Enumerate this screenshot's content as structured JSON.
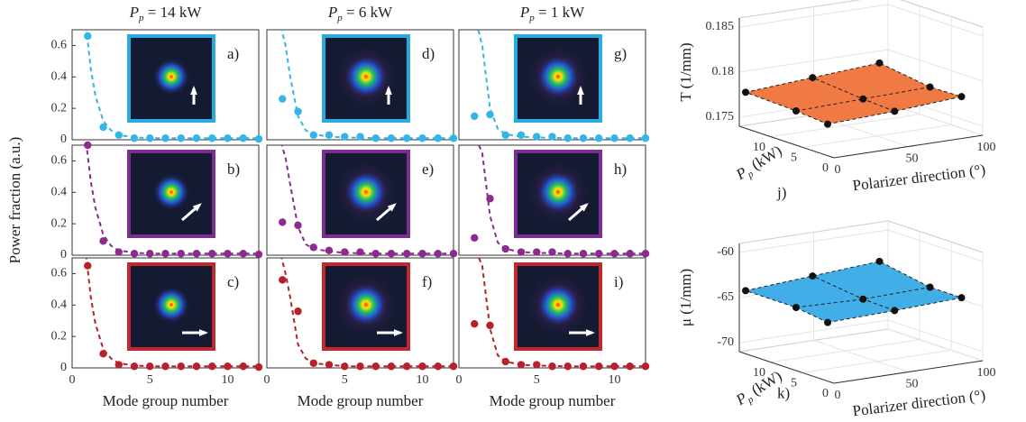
{
  "chart_data": [
    {
      "type": "scatter",
      "title": [
        "P",
        "p",
        " = 14 kW"
      ],
      "panel": "a)",
      "xlim": [
        0,
        12
      ],
      "ylim": [
        0,
        0.7
      ],
      "yticks": [
        0,
        0.2,
        0.4,
        0.6
      ],
      "series": [
        {
          "color": "#33b5e5",
          "x": [
            1,
            2,
            3,
            4,
            5,
            6,
            7,
            8,
            9,
            10,
            11,
            12
          ],
          "values": [
            0.66,
            0.08,
            0.03,
            0.01,
            0.01,
            0.01,
            0.01,
            0.01,
            0.01,
            0.01,
            0.01,
            0.005
          ]
        },
        {
          "color": "#33b5e5",
          "style": "dashed",
          "x": [
            0.9,
            1.2,
            1.5,
            2,
            2.5,
            3,
            4,
            5,
            7,
            9,
            12
          ],
          "values": [
            0.72,
            0.45,
            0.28,
            0.12,
            0.06,
            0.03,
            0.015,
            0.01,
            0.01,
            0.01,
            0.01
          ]
        }
      ]
    },
    {
      "type": "scatter",
      "title": [
        "P",
        "p",
        " = 6 kW"
      ],
      "panel": "d)",
      "xlim": [
        0,
        12
      ],
      "ylim": [
        0,
        0.7
      ],
      "series": [
        {
          "color": "#33b5e5",
          "x": [
            1,
            2,
            3,
            4,
            5,
            6,
            7,
            8,
            9,
            10,
            11,
            12
          ],
          "values": [
            0.26,
            0.18,
            0.03,
            0.03,
            0.02,
            0.02,
            0.01,
            0.01,
            0.01,
            0.01,
            0.01,
            0.01
          ]
        },
        {
          "color": "#33b5e5",
          "style": "dashed",
          "x": [
            0.9,
            1.2,
            1.5,
            2,
            2.5,
            3,
            4,
            5,
            7,
            9,
            12
          ],
          "values": [
            0.72,
            0.6,
            0.4,
            0.15,
            0.06,
            0.035,
            0.02,
            0.015,
            0.01,
            0.01,
            0.01
          ]
        }
      ]
    },
    {
      "type": "scatter",
      "title": [
        "P",
        "p",
        " = 1 kW"
      ],
      "panel": "g)",
      "xlim": [
        0,
        12
      ],
      "ylim": [
        0,
        0.7
      ],
      "series": [
        {
          "color": "#33b5e5",
          "x": [
            1,
            2,
            3,
            4,
            5,
            6,
            7,
            8,
            9,
            10,
            11,
            12
          ],
          "values": [
            0.15,
            0.16,
            0.03,
            0.03,
            0.02,
            0.02,
            0.01,
            0.01,
            0.01,
            0.01,
            0.01,
            0.01
          ]
        },
        {
          "color": "#33b5e5",
          "style": "dashed",
          "x": [
            0.9,
            1.2,
            1.5,
            2,
            2.5,
            3,
            4,
            5,
            7,
            9,
            12
          ],
          "values": [
            0.72,
            0.72,
            0.6,
            0.2,
            0.07,
            0.035,
            0.02,
            0.015,
            0.01,
            0.01,
            0.01
          ]
        }
      ]
    },
    {
      "type": "scatter",
      "panel": "b)",
      "ylabel": "Power fraction (a.u.)",
      "xlim": [
        0,
        12
      ],
      "ylim": [
        0,
        0.7
      ],
      "yticks": [
        0,
        0.2,
        0.4,
        0.6
      ],
      "series": [
        {
          "color": "#8b2a8f",
          "x": [
            1,
            2,
            3,
            4,
            5,
            6,
            7,
            8,
            9,
            10,
            11,
            12
          ],
          "values": [
            0.7,
            0.09,
            0.02,
            0.01,
            0.01,
            0.01,
            0.01,
            0.01,
            0.01,
            0.01,
            0.01,
            0.005
          ]
        },
        {
          "color": "#8b2a8f",
          "style": "dashed",
          "x": [
            0.9,
            1.2,
            1.5,
            2,
            2.5,
            3,
            4,
            5,
            7,
            9,
            12
          ],
          "values": [
            0.72,
            0.47,
            0.3,
            0.13,
            0.06,
            0.03,
            0.015,
            0.01,
            0.01,
            0.01,
            0.01
          ]
        }
      ]
    },
    {
      "type": "scatter",
      "panel": "e)",
      "xlim": [
        0,
        12
      ],
      "ylim": [
        0,
        0.7
      ],
      "series": [
        {
          "color": "#8b2a8f",
          "x": [
            1,
            2,
            3,
            4,
            5,
            6,
            7,
            8,
            9,
            10,
            11,
            12
          ],
          "values": [
            0.21,
            0.19,
            0.05,
            0.03,
            0.02,
            0.02,
            0.01,
            0.01,
            0.01,
            0.01,
            0.01,
            0.01
          ]
        },
        {
          "color": "#8b2a8f",
          "style": "dashed",
          "x": [
            0.9,
            1.2,
            1.5,
            2,
            2.5,
            3,
            4,
            5,
            7,
            9,
            12
          ],
          "values": [
            0.72,
            0.62,
            0.45,
            0.18,
            0.07,
            0.04,
            0.025,
            0.015,
            0.01,
            0.01,
            0.01
          ]
        }
      ]
    },
    {
      "type": "scatter",
      "panel": "h)",
      "xlim": [
        0,
        12
      ],
      "ylim": [
        0,
        0.7
      ],
      "series": [
        {
          "color": "#8b2a8f",
          "x": [
            1,
            2,
            3,
            4,
            5,
            6,
            7,
            8,
            9,
            10,
            11,
            12
          ],
          "values": [
            0.11,
            0.36,
            0.04,
            0.02,
            0.02,
            0.02,
            0.01,
            0.01,
            0.01,
            0.01,
            0.01,
            0.01
          ]
        },
        {
          "color": "#8b2a8f",
          "style": "dashed",
          "x": [
            0.9,
            1.2,
            1.5,
            2,
            2.5,
            3,
            4,
            5,
            7,
            9,
            12
          ],
          "values": [
            0.72,
            0.72,
            0.65,
            0.25,
            0.08,
            0.04,
            0.02,
            0.015,
            0.01,
            0.01,
            0.01
          ]
        }
      ]
    },
    {
      "type": "scatter",
      "panel": "c)",
      "xlabel": "Mode group number",
      "xlim": [
        0,
        12
      ],
      "xticks": [
        0,
        5,
        10
      ],
      "ylim": [
        0,
        0.7
      ],
      "yticks": [
        0,
        0.2,
        0.4,
        0.6
      ],
      "series": [
        {
          "color": "#b8202a",
          "x": [
            1,
            2,
            3,
            4,
            5,
            6,
            7,
            8,
            9,
            10,
            11,
            12
          ],
          "values": [
            0.65,
            0.09,
            0.02,
            0.01,
            0.01,
            0.01,
            0.01,
            0.01,
            0.01,
            0.01,
            0.01,
            0.005
          ]
        },
        {
          "color": "#b8202a",
          "style": "dashed",
          "x": [
            0.9,
            1.2,
            1.5,
            2,
            2.5,
            3,
            4,
            5,
            7,
            9,
            12
          ],
          "values": [
            0.72,
            0.45,
            0.28,
            0.12,
            0.06,
            0.03,
            0.015,
            0.01,
            0.01,
            0.01,
            0.01
          ]
        }
      ]
    },
    {
      "type": "scatter",
      "panel": "f)",
      "xlabel": "Mode group number",
      "xlim": [
        0,
        12
      ],
      "xticks": [
        0,
        5,
        10
      ],
      "ylim": [
        0,
        0.7
      ],
      "series": [
        {
          "color": "#b8202a",
          "x": [
            1,
            2,
            3,
            4,
            5,
            6,
            7,
            8,
            9,
            10,
            11,
            12
          ],
          "values": [
            0.56,
            0.36,
            0.03,
            0.02,
            0.01,
            0.01,
            0.01,
            0.01,
            0.01,
            0.01,
            0.01,
            0.01
          ]
        },
        {
          "color": "#b8202a",
          "style": "dashed",
          "x": [
            0.9,
            1.2,
            1.5,
            2,
            2.5,
            3,
            4,
            5,
            7,
            9,
            12
          ],
          "values": [
            0.72,
            0.6,
            0.45,
            0.15,
            0.06,
            0.03,
            0.02,
            0.01,
            0.01,
            0.01,
            0.01
          ]
        }
      ]
    },
    {
      "type": "scatter",
      "panel": "i)",
      "xlabel": "Mode group number",
      "xlim": [
        0,
        12
      ],
      "xticks": [
        0,
        5,
        10
      ],
      "ylim": [
        0,
        0.7
      ],
      "series": [
        {
          "color": "#b8202a",
          "x": [
            1,
            2,
            3,
            4,
            5,
            6,
            7,
            8,
            9,
            10,
            11,
            12
          ],
          "values": [
            0.28,
            0.27,
            0.04,
            0.02,
            0.02,
            0.01,
            0.01,
            0.01,
            0.01,
            0.01,
            0.01,
            0.01
          ]
        },
        {
          "color": "#b8202a",
          "style": "dashed",
          "x": [
            0.9,
            1.2,
            1.5,
            2,
            2.5,
            3,
            4,
            5,
            7,
            9,
            12
          ],
          "values": [
            0.72,
            0.72,
            0.65,
            0.25,
            0.08,
            0.04,
            0.02,
            0.015,
            0.01,
            0.01,
            0.01
          ]
        }
      ]
    },
    {
      "type": "surface3d",
      "panel": "j)",
      "zlabel": "T (1/mm)",
      "ylabel": [
        "P",
        "p",
        " (kW)"
      ],
      "xlabel": "Polarizer direction (°)",
      "color": "#f07a43",
      "xlim": [
        0,
        100
      ],
      "xticks": [
        0,
        50,
        100
      ],
      "ylim": [
        0,
        15
      ],
      "yticks": [
        0,
        5,
        10
      ],
      "zlim": [
        0.174,
        0.186
      ],
      "zticks": [
        0.175,
        0.18,
        0.185
      ],
      "x": [
        0,
        45,
        90,
        0,
        45,
        90,
        0,
        45,
        90
      ],
      "y": [
        1,
        1,
        1,
        6,
        6,
        6,
        14,
        14,
        14
      ],
      "z": [
        0.1775,
        0.1778,
        0.1783,
        0.1778,
        0.178,
        0.1782,
        0.178,
        0.1785,
        0.179
      ]
    },
    {
      "type": "surface3d",
      "panel": "k)",
      "zlabel": "μ (1/mm)",
      "ylabel": [
        "P",
        "p",
        " (kW)"
      ],
      "xlabel": "Polarizer direction (°)",
      "color": "#41aee8",
      "xlim": [
        0,
        100
      ],
      "xticks": [
        0,
        50,
        100
      ],
      "ylim": [
        0,
        15
      ],
      "yticks": [
        0,
        5,
        10
      ],
      "zlim": [
        -71,
        -59
      ],
      "zticks": [
        -70,
        -65,
        -60
      ],
      "x": [
        0,
        45,
        90,
        0,
        45,
        90,
        0,
        45,
        90
      ],
      "y": [
        1,
        1,
        1,
        6,
        6,
        6,
        14,
        14,
        14
      ],
      "z": [
        -64.5,
        -64.3,
        -64,
        -64,
        -64.2,
        -64,
        -64,
        -63.5,
        -63
      ]
    }
  ]
}
